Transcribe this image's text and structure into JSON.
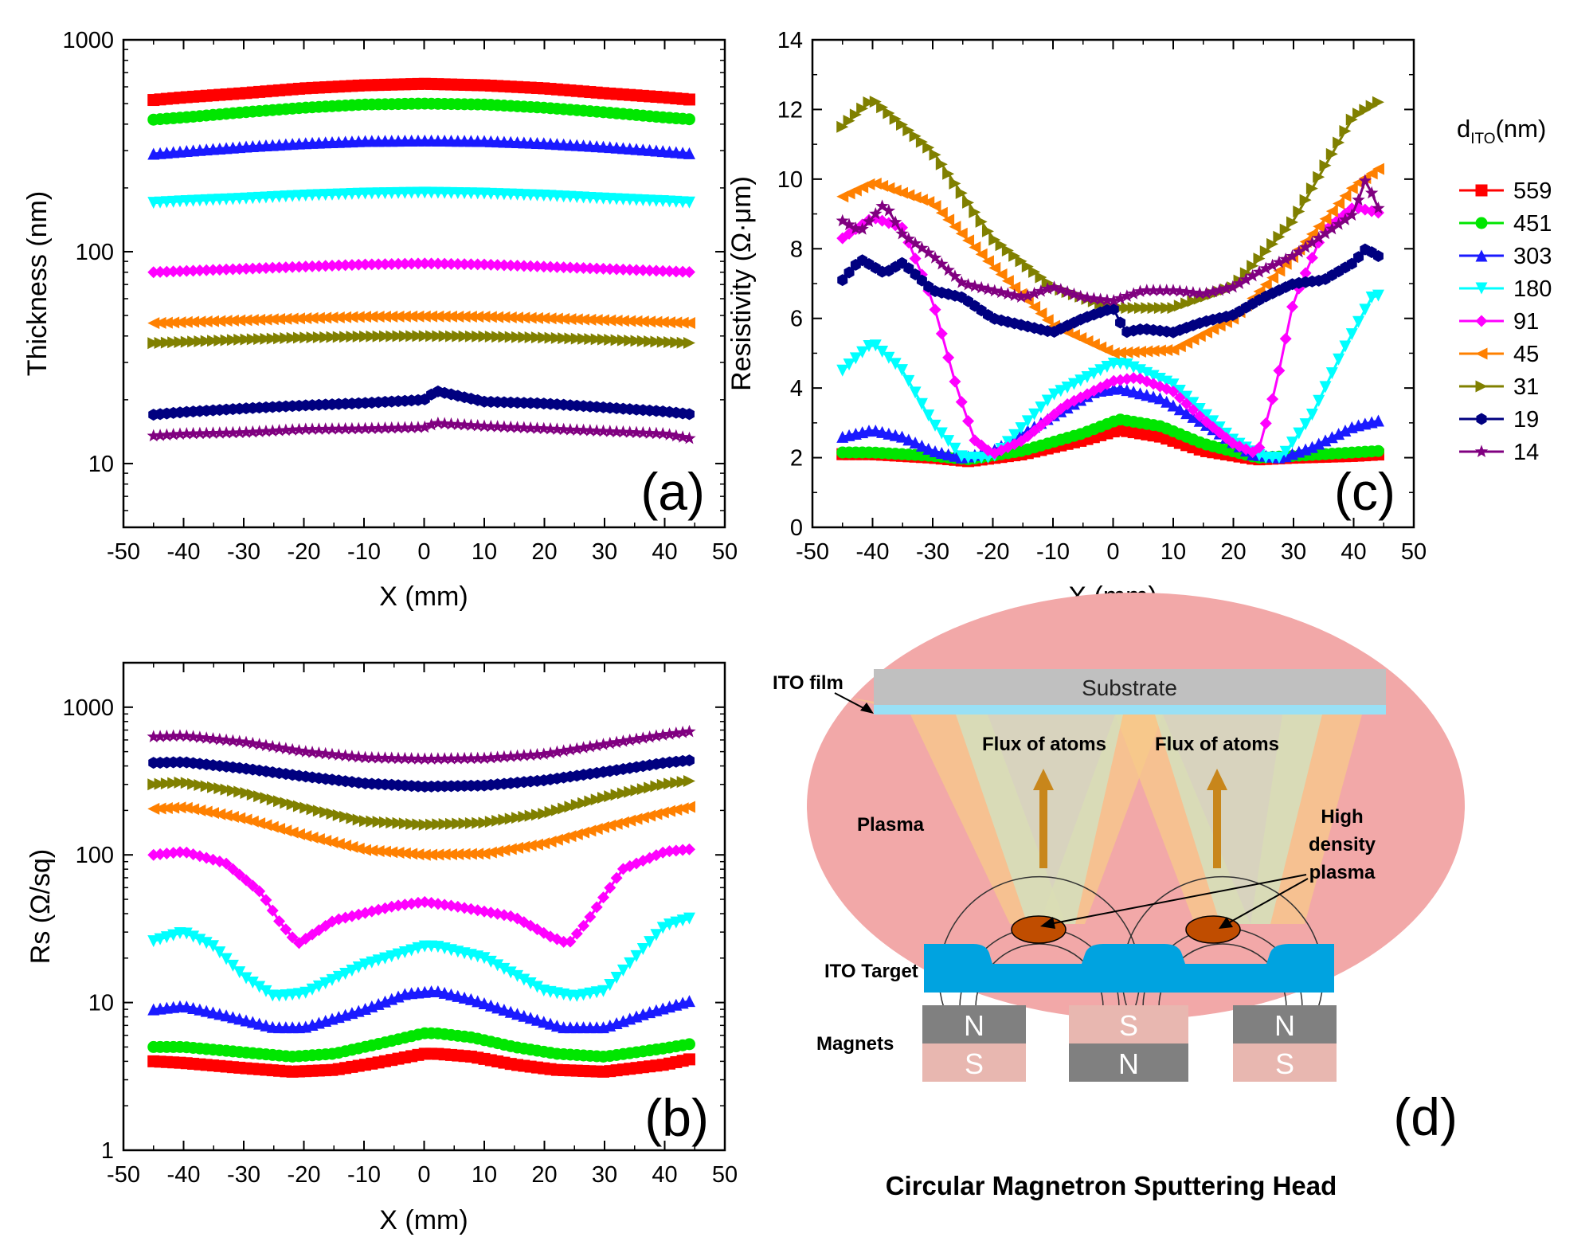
{
  "chart_data": [
    {
      "id": "a",
      "type": "line",
      "yscale": "log",
      "xlabel": "X (mm)",
      "ylabel": "Thickness (nm)",
      "panel_label": "(a)",
      "xlim": [
        -50,
        50
      ],
      "ylim": [
        5,
        1000
      ],
      "xticks": [
        -50,
        -40,
        -30,
        -20,
        -10,
        0,
        10,
        20,
        30,
        40,
        50
      ],
      "yticks": [
        10,
        100,
        1000
      ],
      "series": [
        {
          "name": "559",
          "color": "#ff0000",
          "marker": "square",
          "x": [
            -45,
            -40,
            -30,
            -20,
            -10,
            0,
            10,
            20,
            30,
            40,
            45
          ],
          "values": [
            520,
            535,
            560,
            590,
            610,
            620,
            610,
            590,
            560,
            535,
            520
          ]
        },
        {
          "name": "451",
          "color": "#00e600",
          "marker": "circle",
          "x": [
            -45,
            -40,
            -30,
            -20,
            -10,
            0,
            10,
            20,
            30,
            40,
            45
          ],
          "values": [
            420,
            430,
            455,
            478,
            495,
            500,
            495,
            478,
            455,
            430,
            420
          ]
        },
        {
          "name": "303",
          "color": "#1a1aff",
          "marker": "triangle-up",
          "x": [
            -45,
            -40,
            -30,
            -20,
            -10,
            0,
            10,
            20,
            30,
            40,
            45
          ],
          "values": [
            290,
            298,
            313,
            325,
            333,
            335,
            333,
            325,
            313,
            298,
            290
          ]
        },
        {
          "name": "180",
          "color": "#00ffff",
          "marker": "triangle-down",
          "x": [
            -45,
            -40,
            -30,
            -20,
            -10,
            0,
            10,
            20,
            30,
            40,
            45
          ],
          "values": [
            170,
            173,
            178,
            184,
            188,
            190,
            188,
            184,
            178,
            173,
            170
          ]
        },
        {
          "name": "91",
          "color": "#ff00ff",
          "marker": "diamond",
          "x": [
            -45,
            -40,
            -30,
            -20,
            -10,
            0,
            10,
            20,
            30,
            40,
            45
          ],
          "values": [
            80,
            81,
            83,
            85,
            87,
            88,
            87,
            85,
            83,
            81,
            80
          ]
        },
        {
          "name": "45",
          "color": "#ff8000",
          "marker": "triangle-left",
          "x": [
            -45,
            -40,
            -30,
            -20,
            -10,
            0,
            10,
            20,
            30,
            40,
            45
          ],
          "values": [
            46,
            46.5,
            47.5,
            48.5,
            49.3,
            49.5,
            49.3,
            48.5,
            47.5,
            46.5,
            46
          ]
        },
        {
          "name": "31",
          "color": "#808000",
          "marker": "triangle-right",
          "x": [
            -45,
            -40,
            -30,
            -20,
            -10,
            0,
            10,
            20,
            30,
            40,
            45
          ],
          "values": [
            37,
            37.5,
            38.5,
            39.3,
            39.8,
            40,
            39.8,
            39.3,
            38.5,
            37.5,
            37
          ]
        },
        {
          "name": "19",
          "color": "#000080",
          "marker": "hexagon",
          "x": [
            -45,
            -40,
            -30,
            -20,
            -10,
            0,
            2,
            10,
            20,
            30,
            40,
            45
          ],
          "values": [
            17,
            17.5,
            18.2,
            18.8,
            19.3,
            20,
            22,
            19.6,
            19.2,
            18.4,
            17.6,
            17
          ]
        },
        {
          "name": "14",
          "color": "#800080",
          "marker": "star",
          "x": [
            -45,
            -40,
            -30,
            -20,
            -10,
            0,
            2,
            10,
            20,
            30,
            40,
            45
          ],
          "values": [
            13.5,
            13.8,
            14,
            14.5,
            14.6,
            14.8,
            15.5,
            15,
            14.6,
            14.2,
            13.8,
            13
          ]
        }
      ]
    },
    {
      "id": "b",
      "type": "line",
      "yscale": "log",
      "xlabel": "X (mm)",
      "ylabel": "Rs (Ω/sq)",
      "panel_label": "(b)",
      "xlim": [
        -50,
        50
      ],
      "ylim": [
        1,
        2000
      ],
      "xticks": [
        -50,
        -40,
        -30,
        -20,
        -10,
        0,
        10,
        20,
        30,
        40,
        50
      ],
      "yticks": [
        1,
        10,
        100,
        1000
      ],
      "series": [
        {
          "name": "559",
          "color": "#ff0000",
          "marker": "square",
          "x": [
            -45,
            -40,
            -30,
            -22,
            -15,
            -8,
            0,
            2,
            8,
            15,
            22,
            30,
            40,
            45
          ],
          "values": [
            4,
            3.9,
            3.6,
            3.4,
            3.5,
            3.9,
            4.5,
            4.5,
            4.3,
            3.8,
            3.5,
            3.4,
            3.8,
            4.2
          ]
        },
        {
          "name": "451",
          "color": "#00e600",
          "marker": "circle",
          "x": [
            -45,
            -40,
            -30,
            -22,
            -15,
            -8,
            0,
            2,
            8,
            15,
            22,
            30,
            40,
            45
          ],
          "values": [
            5,
            5,
            4.6,
            4.3,
            4.5,
            5.2,
            6.2,
            6.2,
            5.8,
            5,
            4.5,
            4.3,
            4.9,
            5.3
          ]
        },
        {
          "name": "303",
          "color": "#1a1aff",
          "marker": "triangle-up",
          "x": [
            -45,
            -40,
            -33,
            -25,
            -20,
            -10,
            -3,
            2,
            8,
            15,
            23,
            30,
            37,
            45
          ],
          "values": [
            9,
            9.5,
            8.2,
            6.8,
            6.8,
            9,
            11.5,
            12,
            10.5,
            8.5,
            6.8,
            6.8,
            8.5,
            10.5
          ]
        },
        {
          "name": "180",
          "color": "#00ffff",
          "marker": "triangle-down",
          "x": [
            -45,
            -40,
            -35,
            -30,
            -25,
            -20,
            -10,
            0,
            2,
            10,
            20,
            25,
            30,
            35,
            40,
            45
          ],
          "values": [
            26,
            30,
            24,
            15,
            11,
            11.5,
            18,
            24,
            24,
            20,
            12,
            11,
            12,
            20,
            33,
            38
          ]
        },
        {
          "name": "91",
          "color": "#ff00ff",
          "marker": "diamond",
          "x": [
            -45,
            -40,
            -33,
            -27,
            -24,
            -21,
            -15,
            -5,
            0,
            5,
            15,
            21,
            24,
            27,
            33,
            40,
            45
          ],
          "values": [
            100,
            105,
            88,
            55,
            35,
            25,
            36,
            45,
            48,
            45,
            38,
            28,
            25,
            35,
            80,
            105,
            110
          ]
        },
        {
          "name": "45",
          "color": "#ff8000",
          "marker": "triangle-left",
          "x": [
            -45,
            -40,
            -30,
            -20,
            -10,
            0,
            10,
            20,
            30,
            40,
            45
          ],
          "values": [
            205,
            210,
            175,
            135,
            108,
            100,
            102,
            120,
            155,
            195,
            215
          ]
        },
        {
          "name": "31",
          "color": "#808000",
          "marker": "triangle-right",
          "x": [
            -45,
            -40,
            -30,
            -20,
            -10,
            0,
            10,
            20,
            30,
            40,
            45
          ],
          "values": [
            300,
            310,
            265,
            210,
            170,
            160,
            165,
            190,
            245,
            300,
            320
          ]
        },
        {
          "name": "19",
          "color": "#000080",
          "marker": "hexagon",
          "x": [
            -45,
            -40,
            -30,
            -20,
            -10,
            0,
            10,
            20,
            30,
            40,
            45
          ],
          "values": [
            420,
            425,
            385,
            340,
            305,
            290,
            295,
            320,
            365,
            420,
            440
          ]
        },
        {
          "name": "14",
          "color": "#800080",
          "marker": "star",
          "x": [
            -45,
            -40,
            -30,
            -20,
            -10,
            0,
            10,
            20,
            30,
            40,
            45
          ],
          "values": [
            630,
            640,
            580,
            500,
            455,
            445,
            450,
            480,
            560,
            650,
            690
          ]
        }
      ]
    },
    {
      "id": "c",
      "type": "line",
      "yscale": "linear",
      "xlabel": "X (mm)",
      "ylabel": "Resistivity (Ω·μm)",
      "panel_label": "(c)",
      "xlim": [
        -50,
        50
      ],
      "ylim": [
        0,
        14
      ],
      "xticks": [
        -50,
        -40,
        -30,
        -20,
        -10,
        0,
        10,
        20,
        30,
        40,
        50
      ],
      "yticks": [
        0,
        2,
        4,
        6,
        8,
        10,
        12,
        14
      ],
      "legend_title": "d",
      "legend_subscript": "ITO",
      "legend_unit": "(nm)",
      "series": [
        {
          "name": "559",
          "color": "#ff0000",
          "marker": "square",
          "x": [
            -45,
            -40,
            -30,
            -24,
            -15,
            -5,
            1,
            8,
            15,
            24,
            30,
            40,
            45
          ],
          "values": [
            2.1,
            2.1,
            2,
            1.9,
            2.1,
            2.5,
            2.8,
            2.6,
            2.2,
            1.95,
            2,
            2.05,
            2.1
          ]
        },
        {
          "name": "451",
          "color": "#00e600",
          "marker": "circle",
          "x": [
            -45,
            -40,
            -30,
            -24,
            -15,
            -5,
            1,
            8,
            15,
            24,
            30,
            40,
            45
          ],
          "values": [
            2.15,
            2.15,
            2.05,
            1.95,
            2.2,
            2.7,
            3.1,
            2.9,
            2.4,
            2,
            2.05,
            2.15,
            2.2
          ]
        },
        {
          "name": "303",
          "color": "#1a1aff",
          "marker": "triangle-up",
          "x": [
            -45,
            -40,
            -35,
            -30,
            -25,
            -20,
            -10,
            -3,
            1,
            8,
            15,
            23,
            28,
            33,
            40,
            45
          ],
          "values": [
            2.6,
            2.8,
            2.6,
            2.2,
            2,
            2.2,
            3.2,
            3.9,
            4,
            3.7,
            3,
            2.1,
            2,
            2.3,
            2.9,
            3.1
          ]
        },
        {
          "name": "180",
          "color": "#00ffff",
          "marker": "triangle-down",
          "x": [
            -45,
            -40,
            -35,
            -30,
            -25,
            -20,
            -10,
            0,
            2,
            10,
            20,
            25,
            28,
            33,
            38,
            43,
            45
          ],
          "values": [
            4.5,
            5.3,
            4.5,
            3,
            2,
            2,
            3.8,
            4.7,
            4.7,
            4.1,
            2.5,
            2,
            2,
            3.2,
            5,
            6.6,
            6.7
          ]
        },
        {
          "name": "91",
          "color": "#ff00ff",
          "marker": "diamond",
          "x": [
            -45,
            -40,
            -35,
            -30,
            -26,
            -23,
            -20,
            -15,
            -8,
            0,
            4,
            10,
            15,
            20,
            24,
            27,
            30,
            35,
            40,
            45
          ],
          "values": [
            8.3,
            8.9,
            8.6,
            6.5,
            4,
            2.5,
            2.1,
            2.5,
            3.5,
            4.2,
            4.3,
            3.9,
            3.1,
            2.4,
            2.1,
            4,
            6.5,
            8.5,
            9.2,
            9
          ]
        },
        {
          "name": "45",
          "color": "#ff8000",
          "marker": "triangle-left",
          "x": [
            -45,
            -40,
            -30,
            -20,
            -10,
            0,
            10,
            20,
            30,
            40,
            45
          ],
          "values": [
            9.5,
            9.9,
            9.3,
            7.5,
            5.8,
            5,
            5.1,
            6,
            7.8,
            9.8,
            10.4
          ]
        },
        {
          "name": "31",
          "color": "#808000",
          "marker": "triangle-right",
          "x": [
            -45,
            -40,
            -30,
            -20,
            -10,
            0,
            10,
            20,
            30,
            40,
            45
          ],
          "values": [
            11.5,
            12.3,
            10.8,
            8.3,
            6.9,
            6.3,
            6.3,
            6.9,
            8.8,
            11.8,
            12.3
          ]
        },
        {
          "name": "19",
          "color": "#000080",
          "marker": "hexagon",
          "x": [
            -45,
            -42,
            -38,
            -35,
            -30,
            -25,
            -20,
            -15,
            -10,
            -5,
            0,
            2,
            5,
            10,
            15,
            20,
            25,
            30,
            35,
            40,
            42,
            45
          ],
          "values": [
            7.1,
            7.7,
            7.3,
            7.6,
            6.8,
            6.6,
            6,
            5.8,
            5.6,
            6,
            6.3,
            5.6,
            5.7,
            5.6,
            5.9,
            6.1,
            6.6,
            7,
            7.1,
            7.6,
            8,
            7.7
          ]
        },
        {
          "name": "14",
          "color": "#800080",
          "marker": "star",
          "x": [
            -45,
            -42,
            -38,
            -35,
            -30,
            -25,
            -20,
            -15,
            -10,
            -5,
            0,
            5,
            10,
            15,
            20,
            25,
            30,
            35,
            40,
            42,
            45
          ],
          "values": [
            8.8,
            8.5,
            9.3,
            8.4,
            7.8,
            7,
            6.8,
            6.6,
            6.9,
            6.6,
            6.5,
            6.8,
            6.8,
            6.7,
            6.9,
            7.4,
            7.8,
            8.4,
            9,
            10,
            8.8
          ]
        }
      ]
    }
  ],
  "diagram": {
    "substrate_label": "Substrate",
    "ito_film_label": "ITO film",
    "flux_left_label": "Flux of atoms",
    "flux_right_label": "Flux of atoms",
    "plasma_label": "Plasma",
    "high_density_label_lines": [
      "High",
      "density",
      "plasma"
    ],
    "target_label": "ITO Target",
    "magnets_label": "Magnets",
    "magnets": [
      {
        "top": "N",
        "bottom": "S"
      },
      {
        "top": "S",
        "bottom": "N"
      },
      {
        "top": "N",
        "bottom": "S"
      }
    ],
    "panel_label": "(d)",
    "caption": "Circular Magnetron Sputtering Head",
    "colors": {
      "plasma": "#f2a8a8",
      "substrate": "#c0c0c0",
      "film": "#99e0f5",
      "target": "#00a3e0",
      "magnet_dark": "#808080",
      "magnet_light": "#e8b7b0",
      "spot": "#c04d00",
      "flux_beam": "#f7c98a",
      "flux_cone": "#cde6c8",
      "arrow": "#c8861b"
    }
  }
}
